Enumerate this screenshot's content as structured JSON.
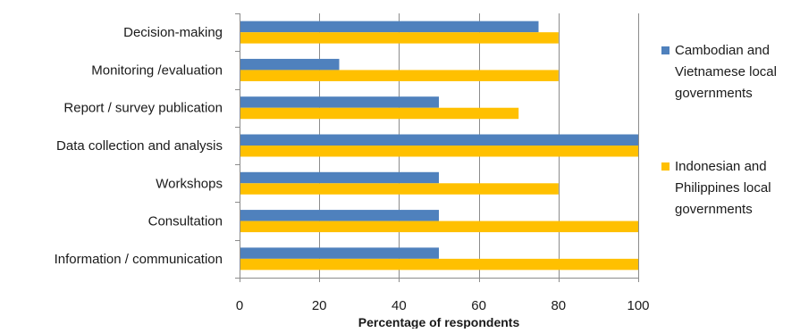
{
  "chart_data": {
    "type": "bar",
    "orientation": "horizontal",
    "categories": [
      "Decision-making",
      "Monitoring /evaluation",
      "Report / survey publication",
      "Data collection and analysis",
      "Workshops",
      "Consultation",
      "Information / communication"
    ],
    "series": [
      {
        "name": "Cambodian and Vietnamese local governments",
        "legend_lines": [
          "Cambodian and",
          "Vietnamese local",
          "governments"
        ],
        "color": "#4f81bd",
        "values": [
          75,
          25,
          50,
          100,
          50,
          50,
          50
        ]
      },
      {
        "name": "Indonesian and Philippines local governments",
        "legend_lines": [
          "Indonesian and",
          "Philippines local",
          "governments"
        ],
        "color": "#ffc000",
        "values": [
          80,
          80,
          70,
          100,
          80,
          100,
          100
        ]
      }
    ],
    "xlabel": "Percentage of respondents",
    "ylabel": "",
    "xlim": [
      0,
      100
    ],
    "xticks": [
      "0",
      "20",
      "40",
      "60",
      "80",
      "100"
    ],
    "grid": true,
    "legend_position": "right"
  }
}
